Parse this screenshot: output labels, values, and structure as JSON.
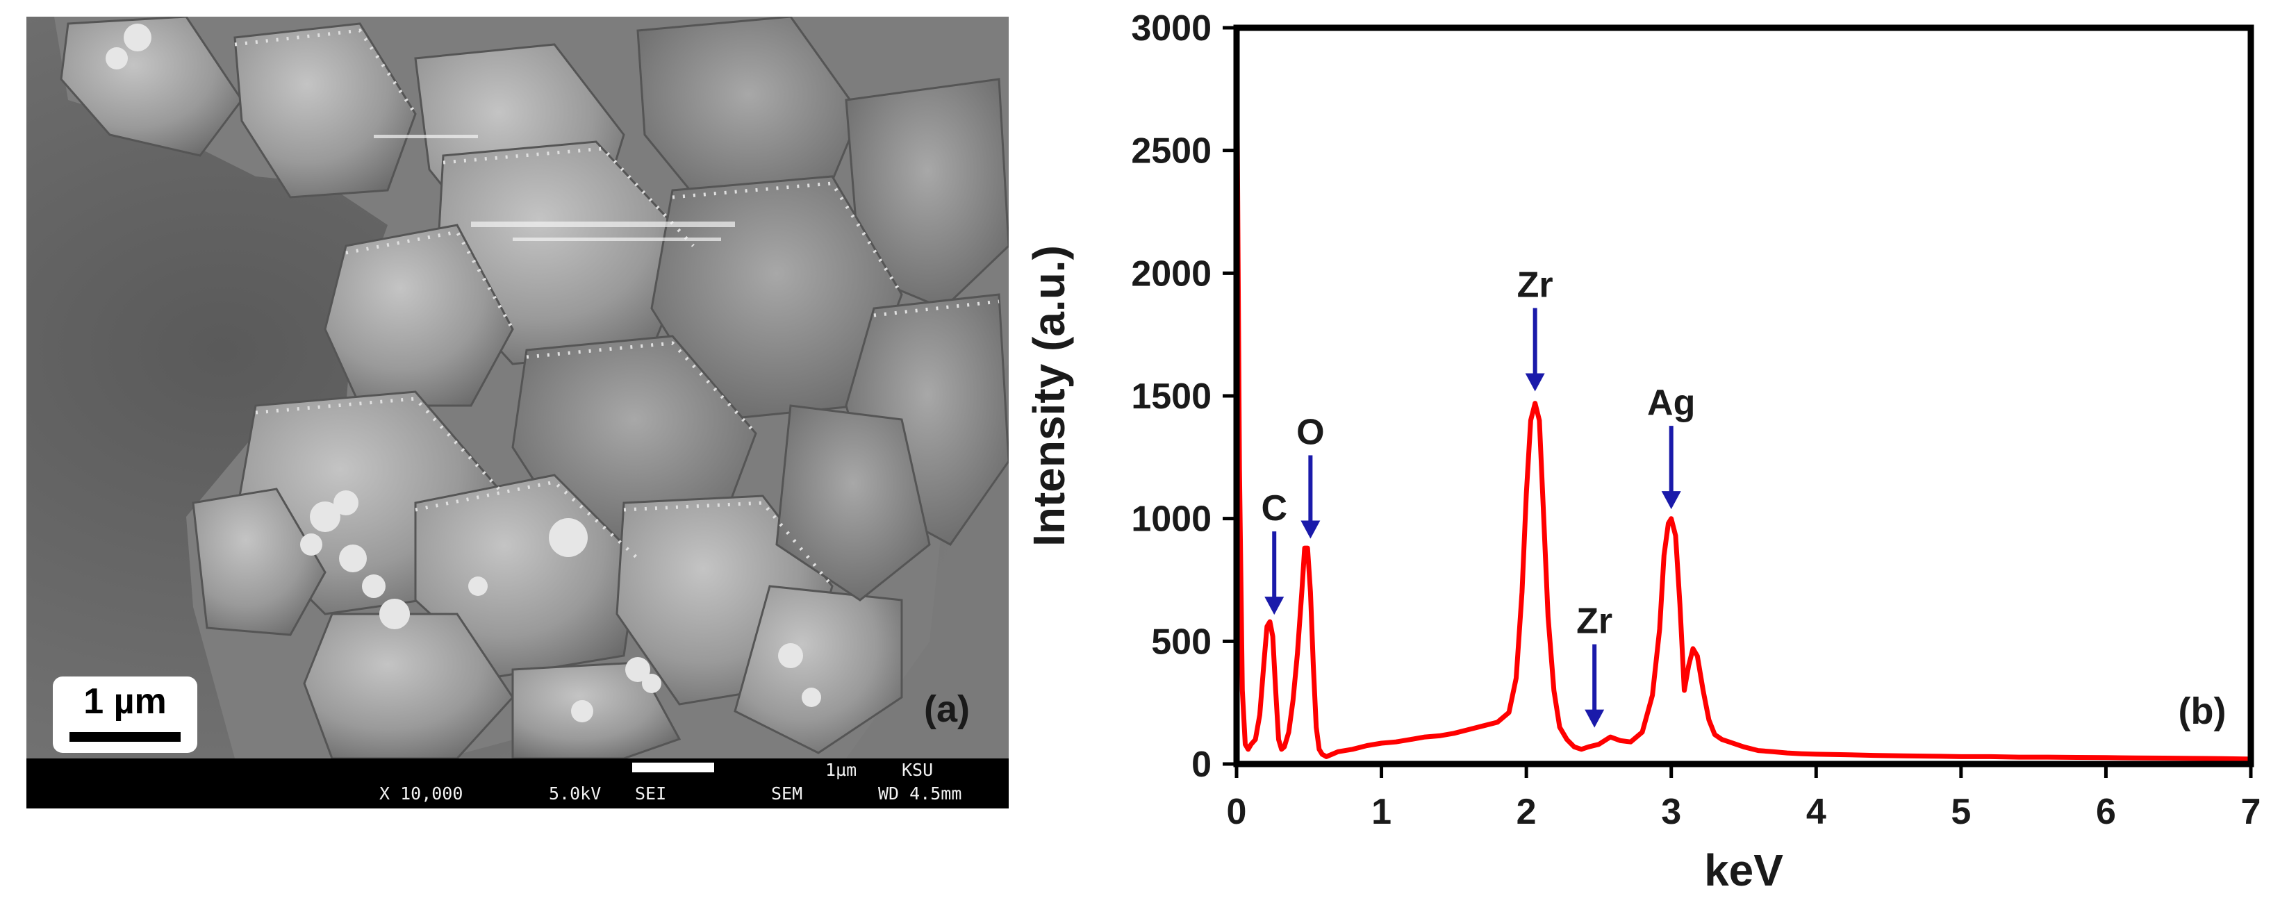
{
  "panel_a": {
    "label": "(a)",
    "scale_bar_label": "1 µm",
    "databar": {
      "magnification": "X 10,000",
      "voltage": "5.0kV",
      "detector": "SEI",
      "mode": "SEM",
      "bar_size": "1µm",
      "lab": "KSU",
      "working_distance": "WD 4.5mm"
    }
  },
  "chart_data": {
    "type": "line",
    "panel_label": "(b)",
    "title": "",
    "xlabel": "keV",
    "ylabel": "Intensity (a.u.)",
    "xlim": [
      0,
      7
    ],
    "ylim": [
      0,
      3000
    ],
    "x_ticks": [
      0,
      1,
      2,
      3,
      4,
      5,
      6,
      7
    ],
    "y_ticks": [
      0,
      500,
      1000,
      1500,
      2000,
      2500,
      3000
    ],
    "grid": false,
    "line_color": "#ff0000",
    "arrow_color": "#1a1aaa",
    "series": [
      {
        "x": [
          0.0,
          0.02,
          0.04,
          0.06,
          0.08,
          0.1,
          0.13,
          0.16,
          0.19,
          0.21,
          0.23,
          0.25,
          0.27,
          0.29,
          0.31,
          0.33,
          0.36,
          0.39,
          0.42,
          0.45,
          0.47,
          0.49,
          0.51,
          0.53,
          0.55,
          0.57,
          0.59,
          0.62,
          0.66,
          0.7,
          0.8,
          0.9,
          1.0,
          1.1,
          1.2,
          1.3,
          1.4,
          1.5,
          1.6,
          1.7,
          1.8,
          1.88,
          1.93,
          1.97,
          2.0,
          2.03,
          2.06,
          2.09,
          2.12,
          2.15,
          2.19,
          2.23,
          2.28,
          2.33,
          2.38,
          2.43,
          2.5,
          2.58,
          2.65,
          2.72,
          2.8,
          2.87,
          2.92,
          2.95,
          2.98,
          3.0,
          3.03,
          3.06,
          3.09,
          3.12,
          3.15,
          3.18,
          3.22,
          3.26,
          3.3,
          3.35,
          3.4,
          3.5,
          3.6,
          3.7,
          3.8,
          3.9,
          4.0,
          4.2,
          4.4,
          4.6,
          4.8,
          5.0,
          5.2,
          5.4,
          5.6,
          5.8,
          6.0,
          6.2,
          6.4,
          6.6,
          6.8,
          7.0
        ],
        "y": [
          3000,
          1200,
          300,
          80,
          60,
          80,
          100,
          200,
          420,
          560,
          580,
          520,
          300,
          100,
          60,
          70,
          130,
          260,
          450,
          700,
          880,
          880,
          700,
          400,
          150,
          60,
          40,
          30,
          40,
          50,
          60,
          75,
          85,
          90,
          100,
          110,
          115,
          125,
          140,
          155,
          170,
          210,
          350,
          700,
          1100,
          1400,
          1470,
          1400,
          1000,
          600,
          300,
          150,
          100,
          70,
          60,
          70,
          80,
          110,
          95,
          90,
          130,
          280,
          550,
          850,
          980,
          1000,
          930,
          650,
          300,
          400,
          470,
          440,
          300,
          180,
          120,
          100,
          90,
          70,
          55,
          50,
          45,
          42,
          40,
          38,
          35,
          33,
          32,
          30,
          30,
          28,
          28,
          27,
          26,
          25,
          24,
          23,
          22,
          20
        ]
      }
    ],
    "annotations": [
      {
        "text": "C",
        "x": 0.26,
        "y": 580
      },
      {
        "text": "O",
        "x": 0.51,
        "y": 890
      },
      {
        "text": "Zr",
        "x": 2.06,
        "y": 1490
      },
      {
        "text": "Zr",
        "x": 2.47,
        "y": 120
      },
      {
        "text": "Ag",
        "x": 3.0,
        "y": 1010
      }
    ]
  }
}
